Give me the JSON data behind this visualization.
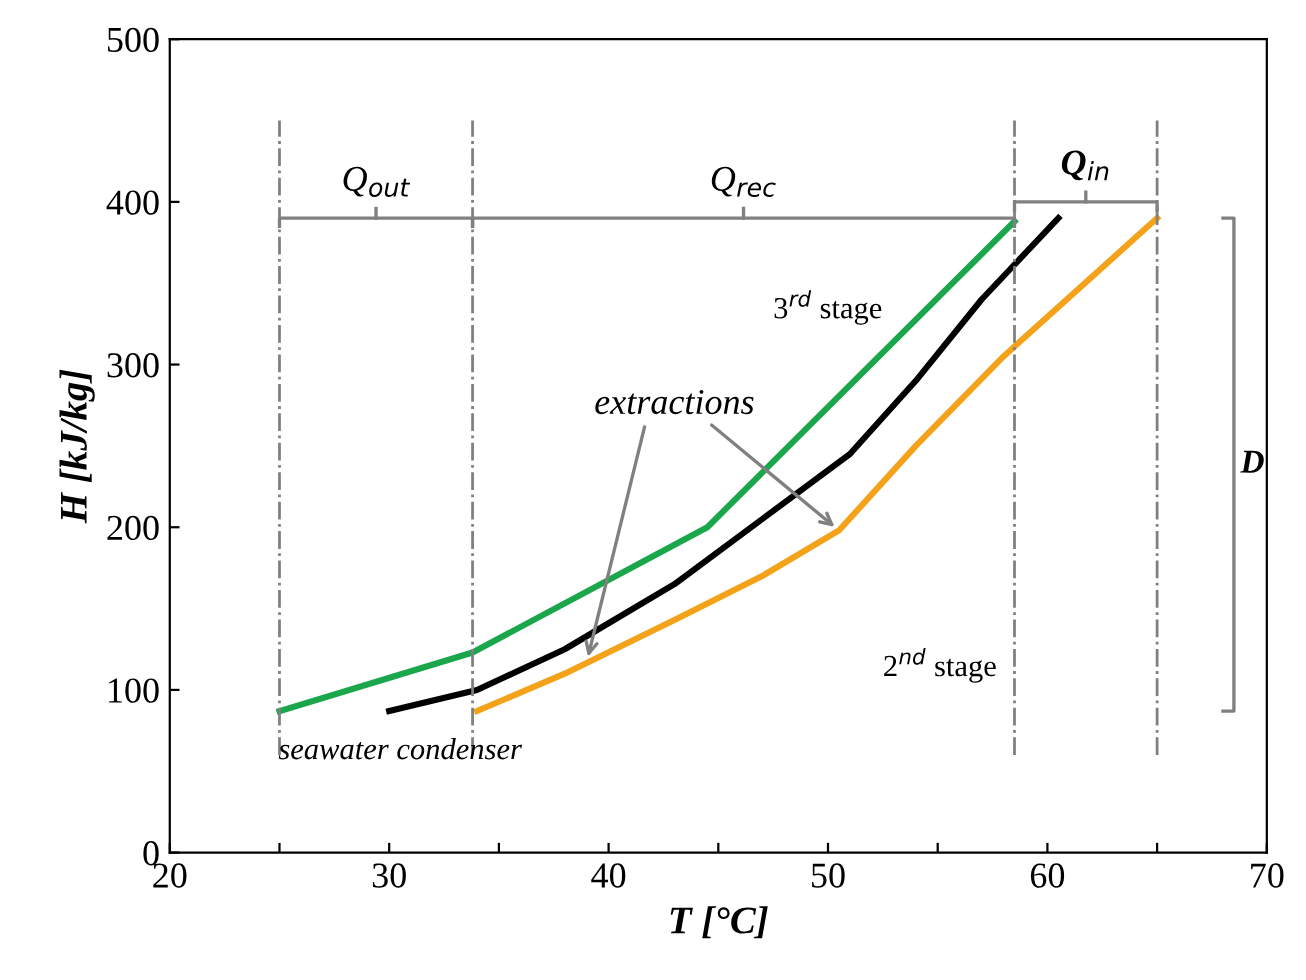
{
  "chart_data": {
    "type": "line",
    "xlabel": "T [°C]",
    "ylabel": "H [kJ/kg]",
    "xlim": [
      20,
      70
    ],
    "ylim": [
      0,
      500
    ],
    "xticks": [
      20,
      {
        "value": 25,
        "label": null
      },
      30,
      {
        "value": 35,
        "label": null
      },
      40,
      {
        "value": 45,
        "label": null
      },
      50,
      {
        "value": 55,
        "label": null
      },
      60,
      {
        "value": 65,
        "label": null
      },
      70
    ],
    "yticks": [
      0,
      100,
      200,
      300,
      400,
      500
    ],
    "series": [
      {
        "color": "#1aa64b",
        "x": [
          25,
          33.8,
          44.5,
          58.5
        ],
        "values": [
          87,
          123,
          200,
          388
        ]
      },
      {
        "color": "#000000",
        "x": [
          30,
          34,
          38,
          43,
          47,
          51,
          54,
          57,
          60.5
        ],
        "values": [
          87,
          100,
          125,
          165,
          205,
          245,
          290,
          340,
          390
        ]
      },
      {
        "color": "#f5a21b",
        "x": [
          34,
          38,
          43,
          47,
          50.5,
          54,
          58,
          65
        ],
        "values": [
          87,
          110,
          143,
          170,
          198,
          250,
          305,
          390
        ]
      }
    ],
    "ref_lines": [
      {
        "axis": "x",
        "value": 25,
        "color": "#808080",
        "line_style": "dashed"
      },
      {
        "axis": "x",
        "value": 33.8,
        "color": "#808080",
        "line_style": "dashed"
      },
      {
        "axis": "x",
        "value": 58.5,
        "color": "#808080",
        "line_style": "dashed"
      },
      {
        "axis": "x",
        "value": 65,
        "color": "#808080",
        "line_style": "dashed"
      }
    ],
    "annotations": [
      "Q$_{out}$",
      "Q$_{rec}$",
      "Q$_{in}$",
      "D",
      "3$^{rd}$ stage",
      "2$^{nd}$ stage",
      {
        "text": "extractions",
        "x": 39,
        "y": 117
      },
      "seawater condenser"
    ],
    "grid": false,
    "marker": "none",
    "line_style": "solid"
  }
}
